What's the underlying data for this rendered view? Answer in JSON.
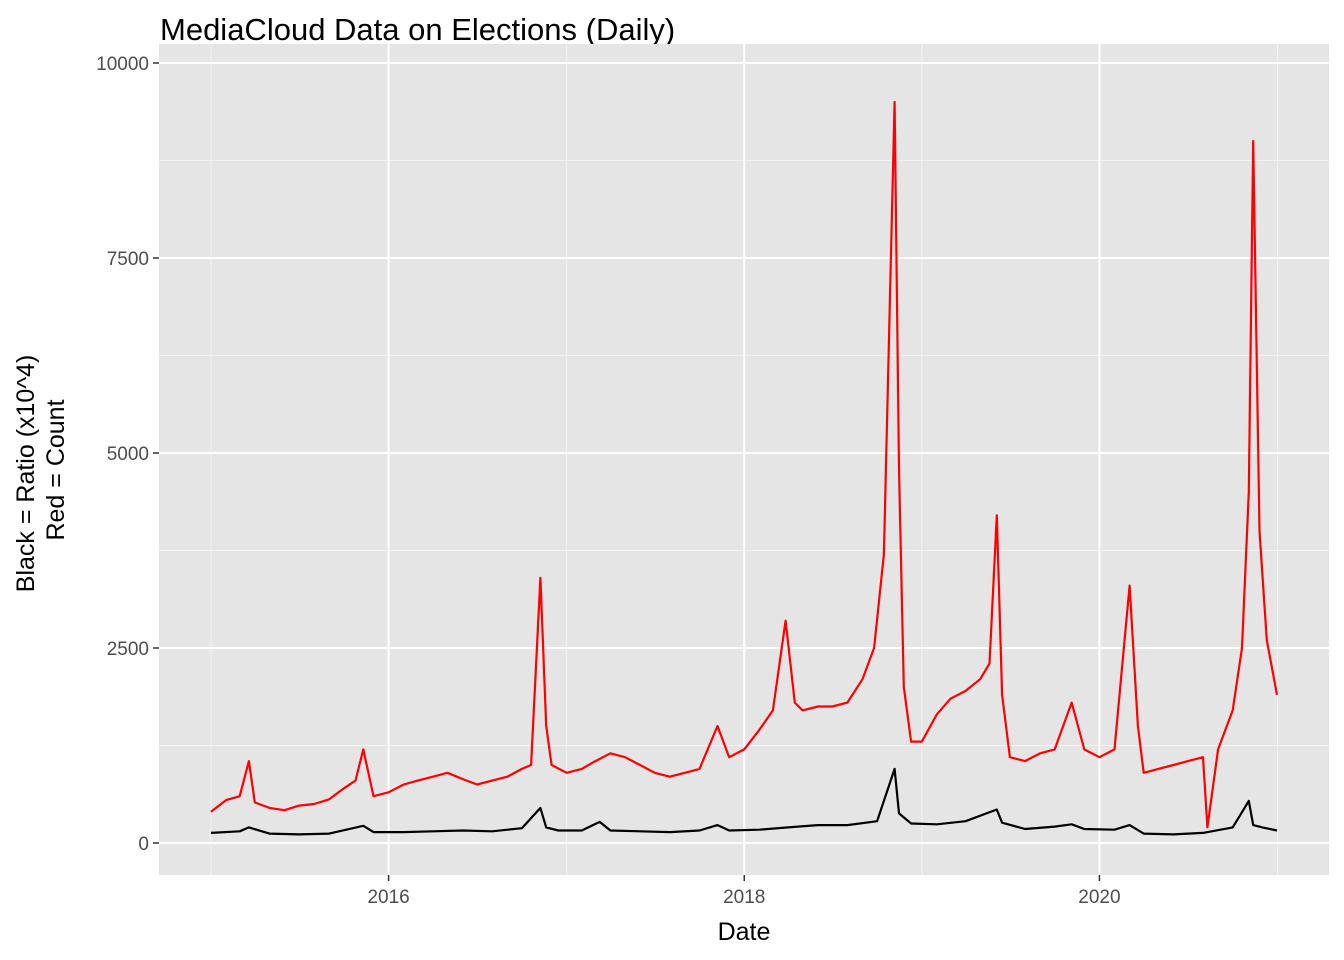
{
  "chart_data": {
    "type": "line",
    "title": "MediaCloud Data on Elections (Daily)",
    "xlabel": "Date",
    "ylabel": [
      "Black = Ratio (x10^4)",
      "Red = Count"
    ],
    "x_range": [
      "2015-01-01",
      "2020-12-31"
    ],
    "ylim": [
      -800,
      10000
    ],
    "x_ticks": [
      {
        "date": "2016-01-01",
        "label": "2016"
      },
      {
        "date": "2018-01-01",
        "label": "2018"
      },
      {
        "date": "2020-01-01",
        "label": "2020"
      }
    ],
    "x_minor_breaks": [
      "2015-01-01",
      "2017-01-01",
      "2019-01-01",
      "2021-01-01"
    ],
    "y_ticks": [
      0,
      2500,
      5000,
      7500,
      10000
    ],
    "y_tick_labels": [
      "0",
      "2500",
      "5000",
      "7500",
      "10000"
    ],
    "grid": true,
    "panel_background": "#e5e5e5",
    "series": [
      {
        "color": "#ff0000",
        "x": [
          "2015-01-01",
          "2015-02-01",
          "2015-03-01",
          "2015-03-20",
          "2015-04-01",
          "2015-05-01",
          "2015-06-01",
          "2015-07-01",
          "2015-08-01",
          "2015-09-01",
          "2015-10-01",
          "2015-10-25",
          "2015-11-10",
          "2015-12-01",
          "2016-01-01",
          "2016-02-01",
          "2016-03-01",
          "2016-04-01",
          "2016-05-01",
          "2016-06-01",
          "2016-07-01",
          "2016-08-01",
          "2016-09-01",
          "2016-10-01",
          "2016-10-20",
          "2016-11-08",
          "2016-11-20",
          "2016-12-01",
          "2017-01-01",
          "2017-02-01",
          "2017-03-01",
          "2017-04-01",
          "2017-05-01",
          "2017-06-01",
          "2017-07-01",
          "2017-08-01",
          "2017-09-01",
          "2017-10-01",
          "2017-11-07",
          "2017-12-01",
          "2018-01-01",
          "2018-02-01",
          "2018-03-01",
          "2018-03-27",
          "2018-04-15",
          "2018-05-01",
          "2018-06-01",
          "2018-07-01",
          "2018-08-01",
          "2018-09-01",
          "2018-09-25",
          "2018-10-15",
          "2018-11-06",
          "2018-11-15",
          "2018-11-25",
          "2018-12-10",
          "2019-01-01",
          "2019-02-01",
          "2019-03-01",
          "2019-04-01",
          "2019-05-01",
          "2019-05-20",
          "2019-06-04",
          "2019-06-15",
          "2019-07-01",
          "2019-08-01",
          "2019-09-01",
          "2019-10-01",
          "2019-11-05",
          "2019-12-01",
          "2020-01-01",
          "2020-02-01",
          "2020-03-03",
          "2020-03-20",
          "2020-04-01",
          "2020-05-01",
          "2020-06-01",
          "2020-07-01",
          "2020-08-01",
          "2020-08-10",
          "2020-09-01",
          "2020-10-01",
          "2020-10-20",
          "2020-11-03",
          "2020-11-12",
          "2020-11-25",
          "2020-12-10",
          "2020-12-31"
        ],
        "y": [
          400,
          550,
          600,
          1050,
          520,
          450,
          420,
          480,
          500,
          560,
          700,
          800,
          1200,
          600,
          650,
          750,
          800,
          850,
          900,
          820,
          750,
          800,
          850,
          950,
          1000,
          3400,
          1500,
          1000,
          900,
          950,
          1050,
          1150,
          1100,
          1000,
          900,
          850,
          900,
          950,
          1500,
          1100,
          1200,
          1450,
          1700,
          2850,
          1800,
          1700,
          1750,
          1750,
          1800,
          2100,
          2500,
          3700,
          9500,
          4800,
          2000,
          1300,
          1300,
          1650,
          1850,
          1950,
          2100,
          2300,
          4200,
          1900,
          1100,
          1050,
          1150,
          1200,
          1800,
          1200,
          1100,
          1200,
          3300,
          1500,
          900,
          950,
          1000,
          1050,
          1100,
          200,
          1200,
          1700,
          2500,
          4500,
          9000,
          4000,
          2600,
          1900
        ]
      },
      {
        "color": "#000000",
        "x": [
          "2015-01-01",
          "2015-03-01",
          "2015-03-20",
          "2015-05-01",
          "2015-07-01",
          "2015-09-01",
          "2015-11-10",
          "2015-12-01",
          "2016-02-01",
          "2016-04-01",
          "2016-06-01",
          "2016-08-01",
          "2016-10-01",
          "2016-11-08",
          "2016-11-20",
          "2016-12-15",
          "2017-02-01",
          "2017-03-10",
          "2017-04-01",
          "2017-06-01",
          "2017-08-01",
          "2017-10-01",
          "2017-11-07",
          "2017-12-01",
          "2018-02-01",
          "2018-04-01",
          "2018-06-01",
          "2018-08-01",
          "2018-10-01",
          "2018-11-06",
          "2018-11-15",
          "2018-12-10",
          "2019-02-01",
          "2019-04-01",
          "2019-06-04",
          "2019-06-15",
          "2019-08-01",
          "2019-10-01",
          "2019-11-05",
          "2019-12-01",
          "2020-02-01",
          "2020-03-03",
          "2020-04-01",
          "2020-06-01",
          "2020-08-01",
          "2020-10-01",
          "2020-11-03",
          "2020-11-12",
          "2020-12-01",
          "2020-12-31"
        ],
        "y": [
          130,
          150,
          200,
          120,
          110,
          120,
          220,
          140,
          140,
          150,
          160,
          150,
          190,
          450,
          200,
          160,
          160,
          270,
          160,
          150,
          140,
          160,
          230,
          160,
          170,
          200,
          230,
          230,
          280,
          950,
          380,
          250,
          240,
          280,
          430,
          260,
          180,
          210,
          240,
          180,
          170,
          230,
          120,
          110,
          130,
          200,
          540,
          230,
          200,
          160
        ]
      }
    ]
  }
}
